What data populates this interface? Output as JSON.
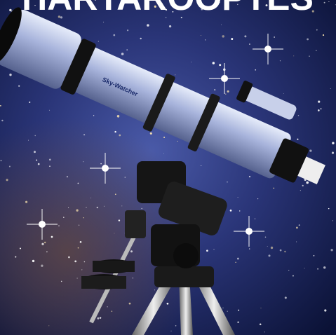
{
  "header": {
    "title": "HARTAROOPTES"
  },
  "telescope": {
    "brand": "Sky-Watcher"
  }
}
